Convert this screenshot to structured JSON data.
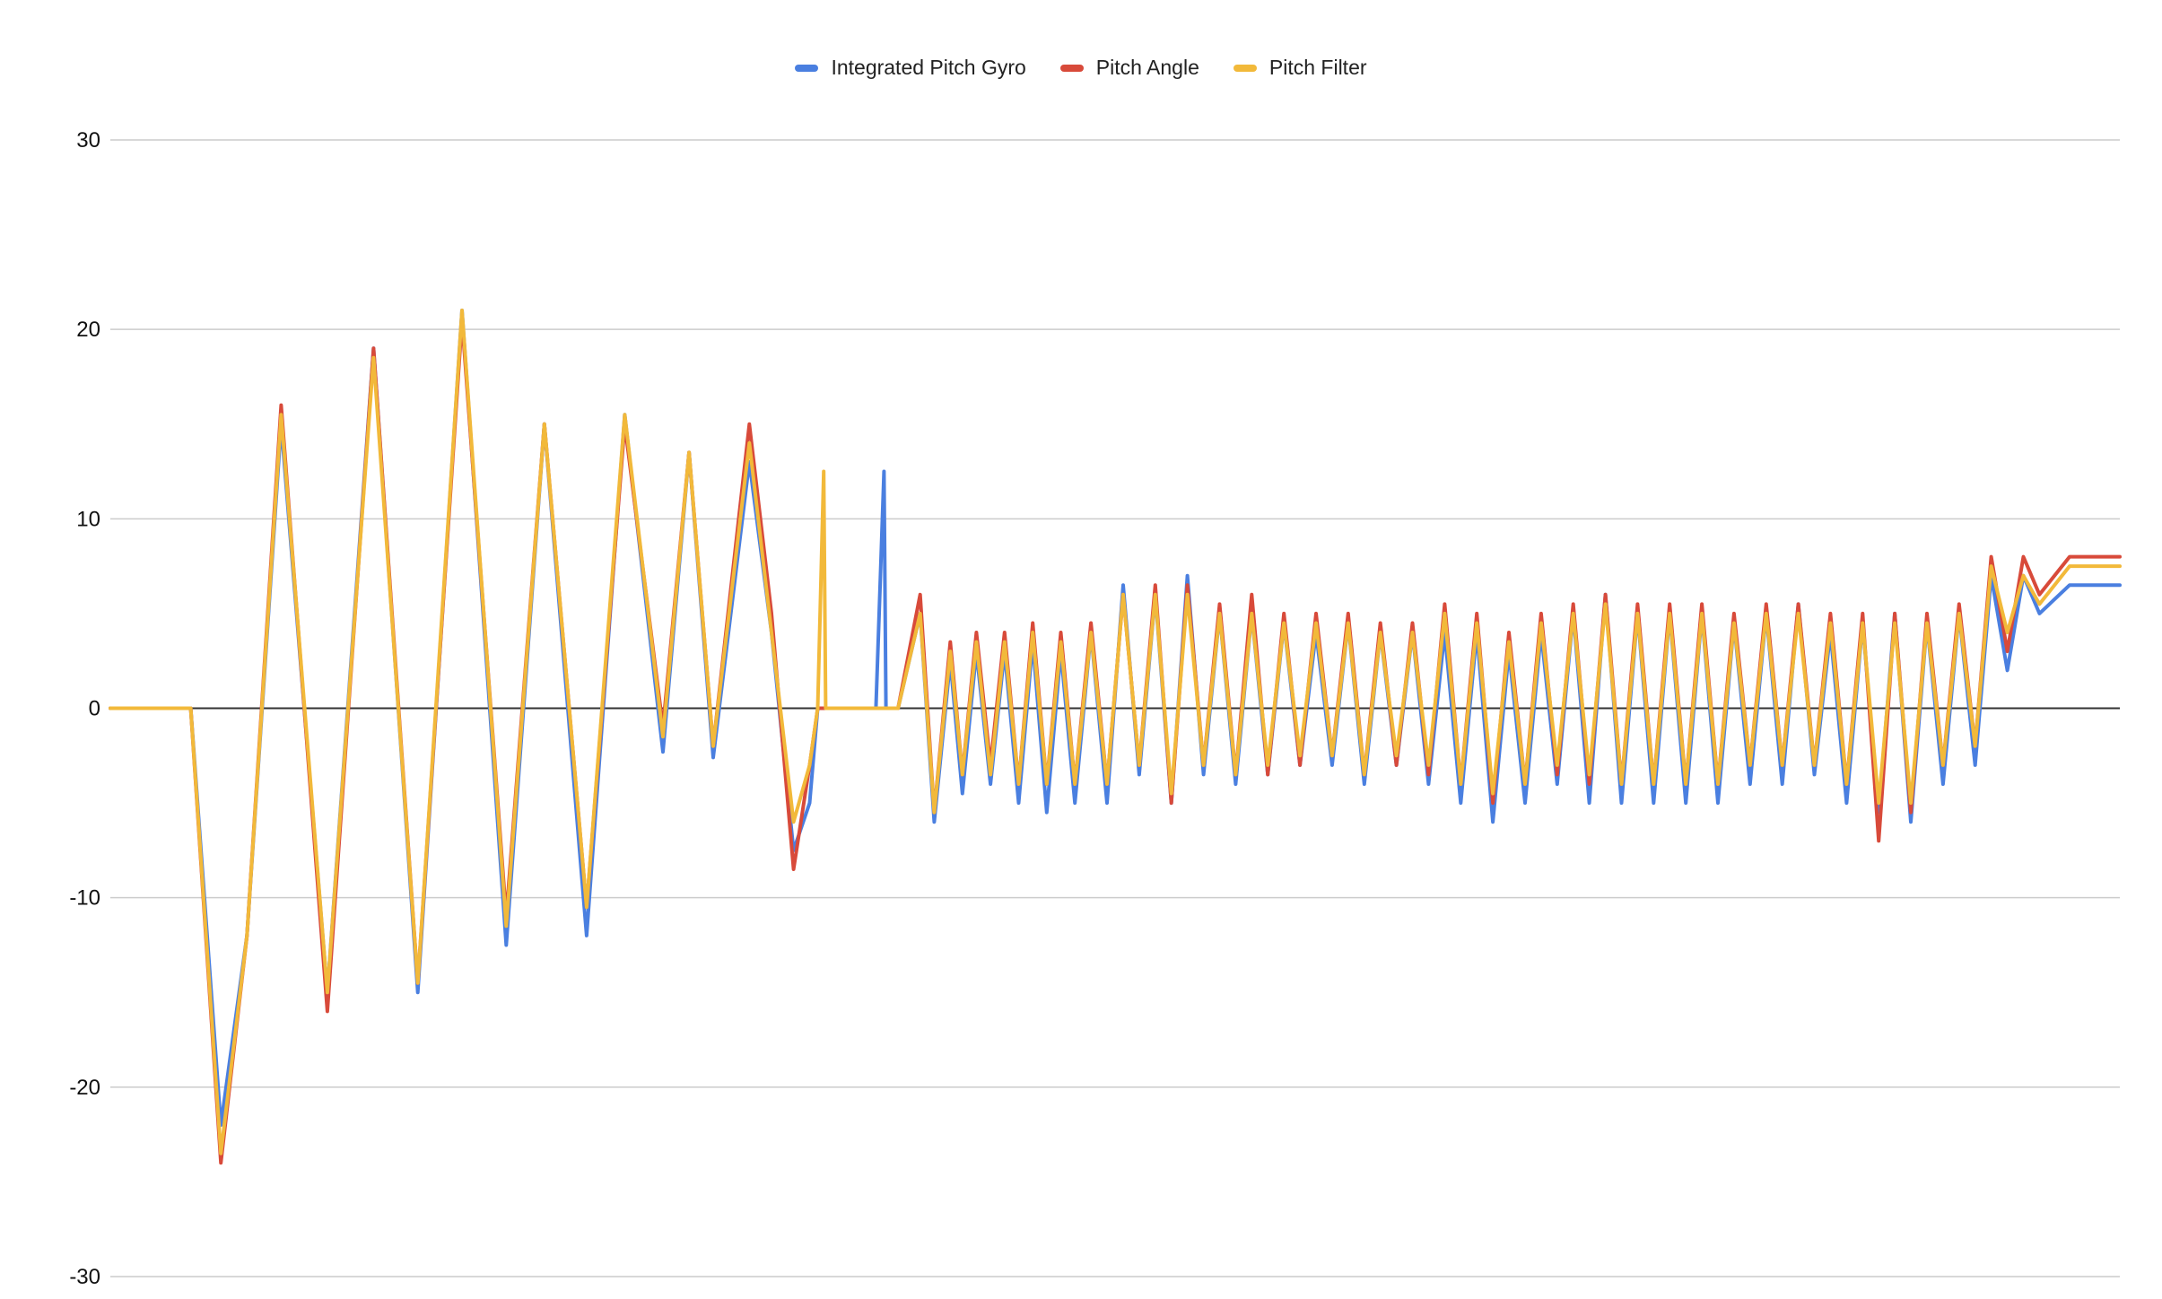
{
  "chart_data": {
    "type": "line",
    "title": "",
    "xlabel": "",
    "ylabel": "",
    "ylim": [
      -30,
      30
    ],
    "yticks": [
      30,
      20,
      10,
      0,
      -10,
      -20,
      -30
    ],
    "grid": true,
    "legend_position": "top-center",
    "x_range": [
      0,
      1000
    ],
    "series": [
      {
        "name": "Integrated Pitch Gyro",
        "color": "#4a7fe0",
        "points": [
          [
            0,
            0
          ],
          [
            40,
            0
          ],
          [
            55,
            -22
          ],
          [
            68,
            -12
          ],
          [
            85,
            15
          ],
          [
            108,
            -15
          ],
          [
            131,
            19
          ],
          [
            153,
            -15
          ],
          [
            175,
            21
          ],
          [
            197,
            -12.5
          ],
          [
            216,
            15
          ],
          [
            237,
            -12
          ],
          [
            256,
            15.5
          ],
          [
            275,
            -2.3
          ],
          [
            288,
            13.5
          ],
          [
            300,
            -2.6
          ],
          [
            318,
            13
          ],
          [
            329,
            4
          ],
          [
            340,
            -7.5
          ],
          [
            348,
            -5
          ],
          [
            352,
            0
          ],
          [
            355,
            0
          ],
          [
            362,
            0
          ],
          [
            378,
            0
          ],
          [
            381,
            0
          ],
          [
            385,
            12.5
          ],
          [
            386,
            0
          ],
          [
            392,
            0
          ],
          [
            403,
            5
          ],
          [
            410,
            -6
          ],
          [
            418,
            2.5
          ],
          [
            424,
            -4.5
          ],
          [
            431,
            3
          ],
          [
            438,
            -4
          ],
          [
            445,
            3
          ],
          [
            452,
            -5
          ],
          [
            459,
            3.5
          ],
          [
            466,
            -5.5
          ],
          [
            473,
            3
          ],
          [
            480,
            -5
          ],
          [
            488,
            4
          ],
          [
            496,
            -5
          ],
          [
            504,
            6.5
          ],
          [
            512,
            -3.5
          ],
          [
            520,
            6
          ],
          [
            528,
            -5
          ],
          [
            536,
            7
          ],
          [
            544,
            -3.5
          ],
          [
            552,
            5
          ],
          [
            560,
            -4
          ],
          [
            568,
            5
          ],
          [
            576,
            -3.5
          ],
          [
            584,
            4.5
          ],
          [
            592,
            -3
          ],
          [
            600,
            4
          ],
          [
            608,
            -3
          ],
          [
            616,
            4.5
          ],
          [
            624,
            -4
          ],
          [
            632,
            4
          ],
          [
            640,
            -3
          ],
          [
            648,
            4
          ],
          [
            656,
            -4
          ],
          [
            664,
            4
          ],
          [
            672,
            -5
          ],
          [
            680,
            4
          ],
          [
            688,
            -6
          ],
          [
            696,
            3
          ],
          [
            704,
            -5
          ],
          [
            712,
            4
          ],
          [
            720,
            -4
          ],
          [
            728,
            5
          ],
          [
            736,
            -5
          ],
          [
            744,
            6
          ],
          [
            752,
            -5
          ],
          [
            760,
            5
          ],
          [
            768,
            -5
          ],
          [
            776,
            5
          ],
          [
            784,
            -5
          ],
          [
            792,
            5
          ],
          [
            800,
            -5
          ],
          [
            808,
            4.5
          ],
          [
            816,
            -4
          ],
          [
            824,
            5
          ],
          [
            832,
            -4
          ],
          [
            840,
            5.5
          ],
          [
            848,
            -3.5
          ],
          [
            856,
            4
          ],
          [
            864,
            -5
          ],
          [
            872,
            4.5
          ],
          [
            880,
            -5.5
          ],
          [
            888,
            5
          ],
          [
            896,
            -6
          ],
          [
            904,
            4.5
          ],
          [
            912,
            -4
          ],
          [
            920,
            5
          ],
          [
            928,
            -3
          ],
          [
            936,
            7
          ],
          [
            944,
            2
          ],
          [
            952,
            7
          ],
          [
            960,
            5
          ],
          [
            975,
            6.5
          ],
          [
            1000,
            6.5
          ]
        ]
      },
      {
        "name": "Pitch Angle",
        "color": "#d84a3a",
        "points": [
          [
            0,
            0
          ],
          [
            40,
            0
          ],
          [
            55,
            -24
          ],
          [
            68,
            -12
          ],
          [
            85,
            16
          ],
          [
            108,
            -16
          ],
          [
            131,
            19
          ],
          [
            153,
            -14.5
          ],
          [
            175,
            20.5
          ],
          [
            197,
            -11
          ],
          [
            216,
            15
          ],
          [
            237,
            -10.5
          ],
          [
            256,
            15
          ],
          [
            275,
            -1
          ],
          [
            288,
            13.5
          ],
          [
            300,
            -2
          ],
          [
            318,
            15
          ],
          [
            329,
            5
          ],
          [
            340,
            -8.5
          ],
          [
            348,
            -3
          ],
          [
            352,
            0
          ],
          [
            355,
            0
          ],
          [
            362,
            0
          ],
          [
            378,
            0
          ],
          [
            381,
            0
          ],
          [
            385,
            0
          ],
          [
            386,
            0
          ],
          [
            392,
            0
          ],
          [
            403,
            6
          ],
          [
            410,
            -5.5
          ],
          [
            418,
            3.5
          ],
          [
            424,
            -3.5
          ],
          [
            431,
            4
          ],
          [
            438,
            -3
          ],
          [
            445,
            4
          ],
          [
            452,
            -4
          ],
          [
            459,
            4.5
          ],
          [
            466,
            -4
          ],
          [
            473,
            4
          ],
          [
            480,
            -4
          ],
          [
            488,
            4.5
          ],
          [
            496,
            -4
          ],
          [
            504,
            6
          ],
          [
            512,
            -3
          ],
          [
            520,
            6.5
          ],
          [
            528,
            -5
          ],
          [
            536,
            6.5
          ],
          [
            544,
            -3
          ],
          [
            552,
            5.5
          ],
          [
            560,
            -3.5
          ],
          [
            568,
            6
          ],
          [
            576,
            -3.5
          ],
          [
            584,
            5
          ],
          [
            592,
            -3
          ],
          [
            600,
            5
          ],
          [
            608,
            -2.5
          ],
          [
            616,
            5
          ],
          [
            624,
            -3.5
          ],
          [
            632,
            4.5
          ],
          [
            640,
            -3
          ],
          [
            648,
            4.5
          ],
          [
            656,
            -3.5
          ],
          [
            664,
            5.5
          ],
          [
            672,
            -4
          ],
          [
            680,
            5
          ],
          [
            688,
            -5
          ],
          [
            696,
            4
          ],
          [
            704,
            -4
          ],
          [
            712,
            5
          ],
          [
            720,
            -3.5
          ],
          [
            728,
            5.5
          ],
          [
            736,
            -4
          ],
          [
            744,
            6
          ],
          [
            752,
            -4
          ],
          [
            760,
            5.5
          ],
          [
            768,
            -4
          ],
          [
            776,
            5.5
          ],
          [
            784,
            -4
          ],
          [
            792,
            5.5
          ],
          [
            800,
            -4
          ],
          [
            808,
            5
          ],
          [
            816,
            -3
          ],
          [
            824,
            5.5
          ],
          [
            832,
            -3
          ],
          [
            840,
            5.5
          ],
          [
            848,
            -3
          ],
          [
            856,
            5
          ],
          [
            864,
            -4
          ],
          [
            872,
            5
          ],
          [
            880,
            -7
          ],
          [
            888,
            5
          ],
          [
            896,
            -5.5
          ],
          [
            904,
            5
          ],
          [
            912,
            -3
          ],
          [
            920,
            5.5
          ],
          [
            928,
            -2
          ],
          [
            936,
            8
          ],
          [
            944,
            3
          ],
          [
            952,
            8
          ],
          [
            960,
            6
          ],
          [
            975,
            8
          ],
          [
            1000,
            8
          ]
        ]
      },
      {
        "name": "Pitch Filter",
        "color": "#f2b93a",
        "points": [
          [
            0,
            0
          ],
          [
            40,
            0
          ],
          [
            55,
            -23.5
          ],
          [
            68,
            -12
          ],
          [
            85,
            15.5
          ],
          [
            108,
            -15
          ],
          [
            131,
            18.5
          ],
          [
            153,
            -14.5
          ],
          [
            175,
            21
          ],
          [
            197,
            -11.5
          ],
          [
            216,
            15
          ],
          [
            237,
            -10.5
          ],
          [
            256,
            15.5
          ],
          [
            275,
            -1.5
          ],
          [
            288,
            13.5
          ],
          [
            300,
            -2
          ],
          [
            318,
            14
          ],
          [
            329,
            4
          ],
          [
            340,
            -6
          ],
          [
            348,
            -3
          ],
          [
            352,
            0
          ],
          [
            355,
            12.5
          ],
          [
            356,
            0
          ],
          [
            362,
            0
          ],
          [
            378,
            0
          ],
          [
            381,
            0
          ],
          [
            385,
            0
          ],
          [
            386,
            0
          ],
          [
            392,
            0
          ],
          [
            403,
            5
          ],
          [
            410,
            -5.5
          ],
          [
            418,
            3
          ],
          [
            424,
            -3.5
          ],
          [
            431,
            3.5
          ],
          [
            438,
            -3.5
          ],
          [
            445,
            3.5
          ],
          [
            452,
            -4
          ],
          [
            459,
            4
          ],
          [
            466,
            -4
          ],
          [
            473,
            3.5
          ],
          [
            480,
            -4
          ],
          [
            488,
            4
          ],
          [
            496,
            -4
          ],
          [
            504,
            6
          ],
          [
            512,
            -3
          ],
          [
            520,
            6
          ],
          [
            528,
            -4.5
          ],
          [
            536,
            6
          ],
          [
            544,
            -3
          ],
          [
            552,
            5
          ],
          [
            560,
            -3.5
          ],
          [
            568,
            5
          ],
          [
            576,
            -3
          ],
          [
            584,
            4.5
          ],
          [
            592,
            -2.5
          ],
          [
            600,
            4.5
          ],
          [
            608,
            -2.5
          ],
          [
            616,
            4.5
          ],
          [
            624,
            -3.5
          ],
          [
            632,
            4
          ],
          [
            640,
            -2.5
          ],
          [
            648,
            4
          ],
          [
            656,
            -3
          ],
          [
            664,
            5
          ],
          [
            672,
            -4
          ],
          [
            680,
            4.5
          ],
          [
            688,
            -4.5
          ],
          [
            696,
            3.5
          ],
          [
            704,
            -4
          ],
          [
            712,
            4.5
          ],
          [
            720,
            -3
          ],
          [
            728,
            5
          ],
          [
            736,
            -3.5
          ],
          [
            744,
            5.5
          ],
          [
            752,
            -4
          ],
          [
            760,
            5
          ],
          [
            768,
            -4
          ],
          [
            776,
            5
          ],
          [
            784,
            -4
          ],
          [
            792,
            5
          ],
          [
            800,
            -4
          ],
          [
            808,
            4.5
          ],
          [
            816,
            -3
          ],
          [
            824,
            5
          ],
          [
            832,
            -3
          ],
          [
            840,
            5
          ],
          [
            848,
            -3
          ],
          [
            856,
            4.5
          ],
          [
            864,
            -4
          ],
          [
            872,
            4.5
          ],
          [
            880,
            -5
          ],
          [
            888,
            4.5
          ],
          [
            896,
            -5
          ],
          [
            904,
            4.5
          ],
          [
            912,
            -3
          ],
          [
            920,
            5
          ],
          [
            928,
            -2
          ],
          [
            936,
            7.5
          ],
          [
            944,
            4
          ],
          [
            952,
            7
          ],
          [
            960,
            5.5
          ],
          [
            975,
            7.5
          ],
          [
            1000,
            7.5
          ]
        ]
      }
    ]
  }
}
